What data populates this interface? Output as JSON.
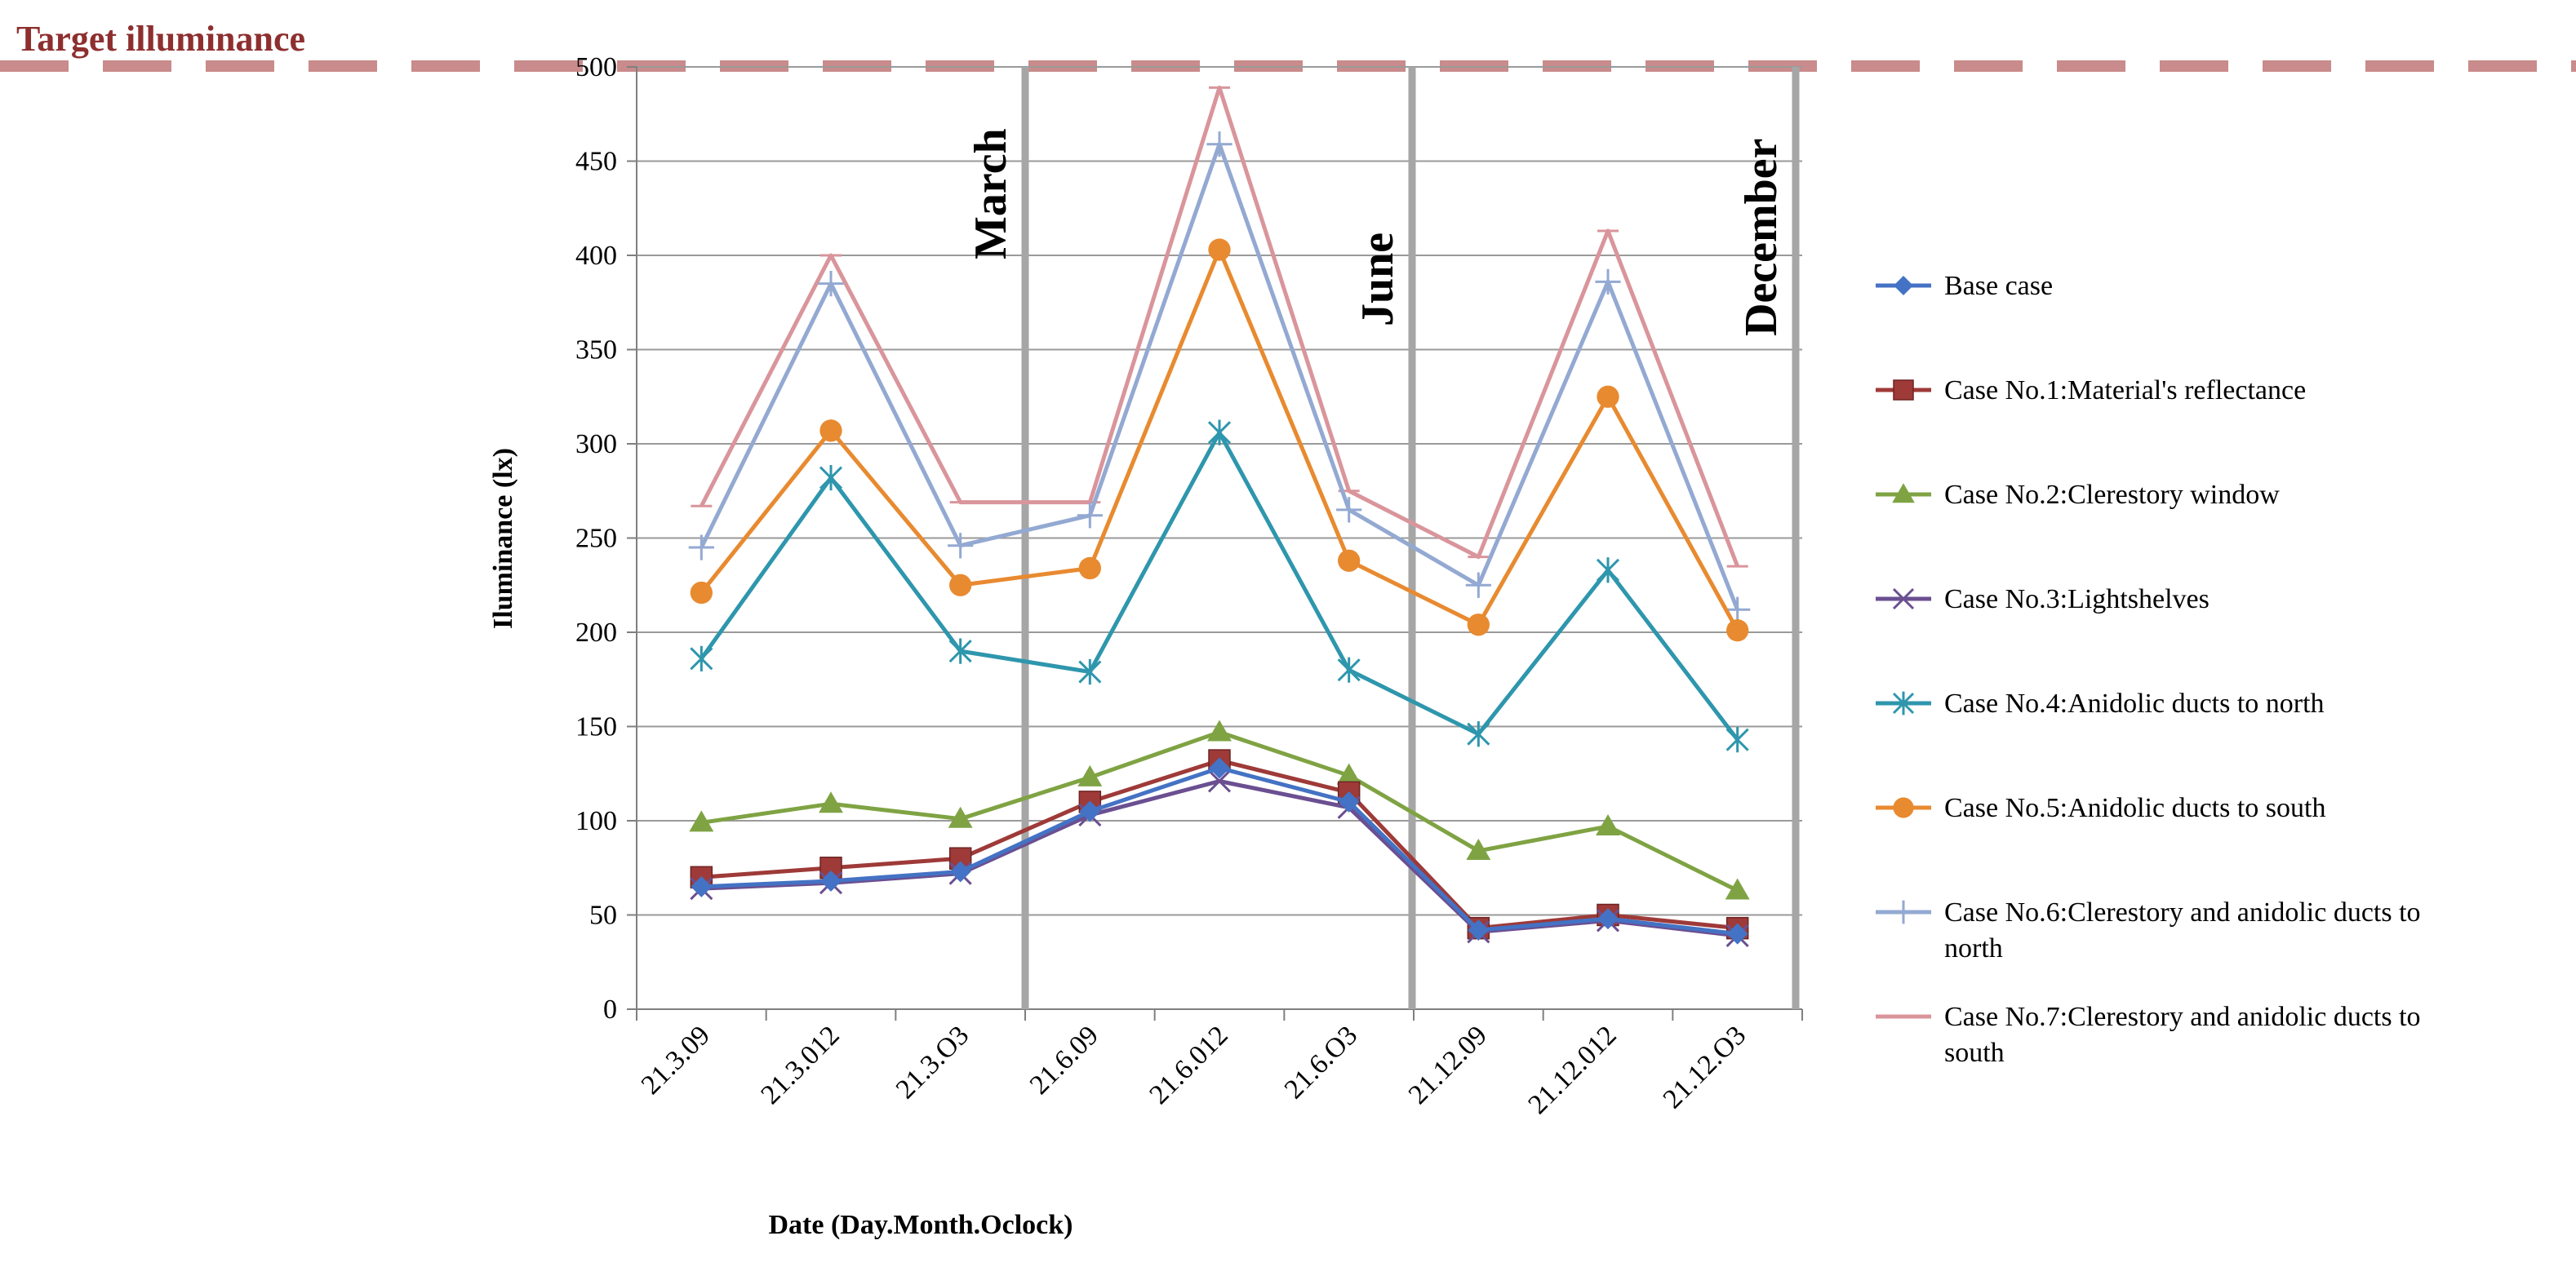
{
  "chart_data": {
    "type": "line",
    "title": "",
    "xlabel": "Date (Day.Month.Oclock)",
    "ylabel": "Iluminance (lx)",
    "ylim": [
      0,
      500
    ],
    "yticks": [
      "0",
      "50",
      "100",
      "150",
      "200",
      "250",
      "300",
      "350",
      "400",
      "450",
      "500"
    ],
    "categories": [
      "21.3.09",
      "21.3.012",
      "21.3.O3",
      "21.6.09",
      "21.6.012",
      "21.6.O3",
      "21.12.09",
      "21.12.012",
      "21.12.O3"
    ],
    "target_line": {
      "label": "Target illuminance",
      "value": 500,
      "color": "#c98b8b"
    },
    "month_labels": [
      "March",
      "June",
      "December"
    ],
    "series": [
      {
        "name": "Base case",
        "color": "#4472c4",
        "marker": "diamond",
        "values": [
          65,
          68,
          73,
          105,
          128,
          110,
          42,
          48,
          40
        ]
      },
      {
        "name": "Case No.1:Material's reflectance",
        "color": "#9e3a38",
        "marker": "square",
        "values": [
          70,
          75,
          80,
          110,
          132,
          115,
          43,
          50,
          43
        ]
      },
      {
        "name": "Case No.2:Clerestory window",
        "color": "#7fa343",
        "marker": "triangle",
        "values": [
          99,
          109,
          101,
          123,
          147,
          124,
          84,
          97,
          63
        ]
      },
      {
        "name": "Case No.3:Lightshelves",
        "color": "#6b4f91",
        "marker": "x",
        "values": [
          64,
          67,
          72,
          103,
          121,
          107,
          41,
          47,
          39
        ]
      },
      {
        "name": "Case No.4:Anidolic ducts to north",
        "color": "#2e96ad",
        "marker": "star",
        "values": [
          186,
          282,
          190,
          179,
          306,
          180,
          146,
          233,
          143
        ]
      },
      {
        "name": "Case No.5:Anidolic ducts to south",
        "color": "#e88a30",
        "marker": "circle",
        "values": [
          221,
          307,
          225,
          234,
          403,
          238,
          204,
          325,
          201
        ]
      },
      {
        "name": "Case No.6:Clerestory and anidolic ducts to north",
        "color": "#93a9d2",
        "marker": "plus",
        "values": [
          245,
          385,
          246,
          262,
          459,
          265,
          225,
          386,
          212
        ]
      },
      {
        "name": "Case No.7:Clerestory and anidolic ducts to south",
        "color": "#d9959b",
        "marker": "dash",
        "values": [
          267,
          400,
          269,
          269,
          489,
          275,
          240,
          413,
          235
        ]
      }
    ]
  }
}
